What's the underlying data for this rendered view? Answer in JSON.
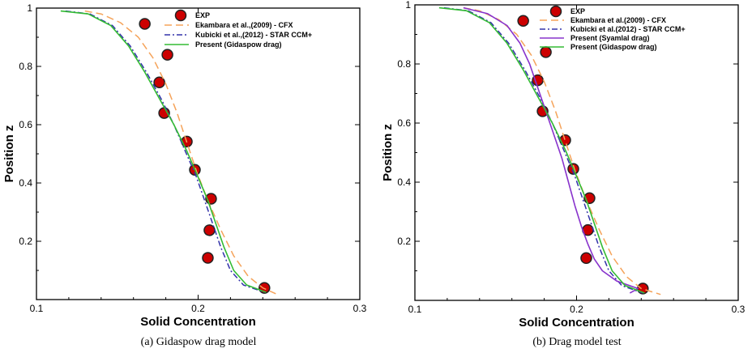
{
  "chart_data": [
    {
      "type": "line",
      "caption": "(a) Gidaspow drag model",
      "xlabel": "Solid Concentration",
      "ylabel": "Position z",
      "xlim": [
        0.1,
        0.3
      ],
      "ylim": [
        0,
        1
      ],
      "xticks": [
        "0.1",
        "0.2",
        "0.3"
      ],
      "yticks": [
        "0.2",
        "0.4",
        "0.6",
        "0.8",
        "1"
      ],
      "xtick_values": [
        0.1,
        0.2,
        0.3
      ],
      "ytick_values": [
        0.2,
        0.4,
        0.6,
        0.8,
        1.0
      ],
      "legend_position": "top-right",
      "grid": false,
      "series": [
        {
          "name": "EXP",
          "style": "marker",
          "color": "#cc0000",
          "x": [
            0.167,
            0.181,
            0.176,
            0.179,
            0.193,
            0.198,
            0.208,
            0.207,
            0.206,
            0.241
          ],
          "y": [
            0.946,
            0.84,
            0.745,
            0.64,
            0.542,
            0.445,
            0.346,
            0.238,
            0.143,
            0.04
          ]
        },
        {
          "name": "Ekambara et al.,(2009) - CFX",
          "style": "dashed",
          "color": "#f5a35a",
          "x": [
            0.13,
            0.14,
            0.152,
            0.163,
            0.172,
            0.18,
            0.187,
            0.193,
            0.199,
            0.206,
            0.214,
            0.222,
            0.231,
            0.24,
            0.248
          ],
          "y": [
            0.99,
            0.98,
            0.95,
            0.9,
            0.83,
            0.74,
            0.64,
            0.54,
            0.44,
            0.34,
            0.24,
            0.15,
            0.08,
            0.04,
            0.02
          ]
        },
        {
          "name": "Kubicki et al.,(2012) - STAR CCM+",
          "style": "dashdot",
          "color": "#3333aa",
          "x": [
            0.118,
            0.133,
            0.147,
            0.158,
            0.168,
            0.177,
            0.185,
            0.192,
            0.199,
            0.204,
            0.209,
            0.214,
            0.22,
            0.228,
            0.241
          ],
          "y": [
            0.99,
            0.98,
            0.94,
            0.87,
            0.78,
            0.69,
            0.6,
            0.51,
            0.42,
            0.34,
            0.26,
            0.18,
            0.1,
            0.05,
            0.025
          ]
        },
        {
          "name": "Present (Gidaspow drag)",
          "style": "solid",
          "color": "#33bb33",
          "x": [
            0.115,
            0.132,
            0.146,
            0.157,
            0.167,
            0.176,
            0.185,
            0.193,
            0.2,
            0.206,
            0.211,
            0.216,
            0.222,
            0.23,
            0.242
          ],
          "y": [
            0.99,
            0.98,
            0.94,
            0.87,
            0.78,
            0.69,
            0.6,
            0.51,
            0.42,
            0.34,
            0.26,
            0.18,
            0.1,
            0.05,
            0.025
          ]
        }
      ]
    },
    {
      "type": "line",
      "caption": "(b) Drag model test",
      "xlabel": "Solid Concentration",
      "ylabel": "Position z",
      "xlim": [
        0.1,
        0.3
      ],
      "ylim": [
        0,
        1
      ],
      "xticks": [
        "0.1",
        "0.2",
        "0.3"
      ],
      "yticks": [
        "0.2",
        "0.4",
        "0.6",
        "0.8",
        "1"
      ],
      "xtick_values": [
        0.1,
        0.2,
        0.3
      ],
      "ytick_values": [
        0.2,
        0.4,
        0.6,
        0.8,
        1.0
      ],
      "legend_position": "top-right",
      "grid": false,
      "series": [
        {
          "name": "EXP",
          "style": "marker",
          "color": "#cc0000",
          "x": [
            0.167,
            0.181,
            0.176,
            0.179,
            0.193,
            0.198,
            0.208,
            0.207,
            0.206,
            0.241
          ],
          "y": [
            0.946,
            0.84,
            0.745,
            0.64,
            0.542,
            0.445,
            0.346,
            0.238,
            0.143,
            0.04
          ]
        },
        {
          "name": "Ekambara et al.(2009) - CFX",
          "style": "dashed",
          "color": "#f5a35a",
          "x": [
            0.13,
            0.14,
            0.152,
            0.163,
            0.172,
            0.18,
            0.187,
            0.193,
            0.199,
            0.206,
            0.214,
            0.222,
            0.231,
            0.24,
            0.252
          ],
          "y": [
            0.99,
            0.98,
            0.95,
            0.9,
            0.83,
            0.74,
            0.64,
            0.54,
            0.44,
            0.34,
            0.24,
            0.15,
            0.08,
            0.04,
            0.02
          ]
        },
        {
          "name": "Kubicki et al.(2012) - STAR CCM+",
          "style": "dashdot",
          "color": "#3333aa",
          "x": [
            0.118,
            0.133,
            0.147,
            0.158,
            0.168,
            0.177,
            0.185,
            0.192,
            0.199,
            0.204,
            0.209,
            0.214,
            0.22,
            0.228,
            0.241
          ],
          "y": [
            0.99,
            0.98,
            0.94,
            0.87,
            0.78,
            0.69,
            0.6,
            0.51,
            0.42,
            0.34,
            0.26,
            0.18,
            0.1,
            0.05,
            0.025
          ]
        },
        {
          "name": "Present (Syamlal drag)",
          "style": "solid",
          "color": "#8833cc",
          "x": [
            0.13,
            0.145,
            0.157,
            0.165,
            0.171,
            0.176,
            0.181,
            0.186,
            0.191,
            0.195,
            0.199,
            0.203,
            0.207,
            0.211,
            0.216,
            0.225,
            0.238,
            0.233
          ],
          "y": [
            0.99,
            0.97,
            0.93,
            0.87,
            0.8,
            0.72,
            0.64,
            0.56,
            0.48,
            0.4,
            0.32,
            0.25,
            0.19,
            0.14,
            0.1,
            0.065,
            0.04,
            0.025
          ]
        },
        {
          "name": "Present (Gidaspow drag)",
          "style": "solid",
          "color": "#33bb33",
          "x": [
            0.115,
            0.132,
            0.146,
            0.157,
            0.167,
            0.176,
            0.185,
            0.193,
            0.2,
            0.206,
            0.211,
            0.216,
            0.222,
            0.23,
            0.242
          ],
          "y": [
            0.99,
            0.98,
            0.94,
            0.87,
            0.78,
            0.69,
            0.6,
            0.51,
            0.42,
            0.34,
            0.26,
            0.18,
            0.1,
            0.05,
            0.025
          ]
        }
      ]
    }
  ]
}
